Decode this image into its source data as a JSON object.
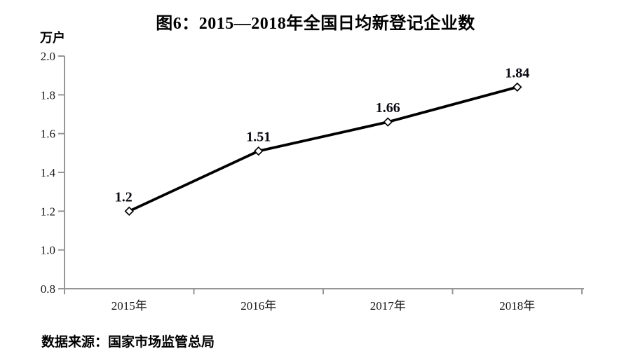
{
  "chart_data": {
    "type": "line",
    "title": "图6：2015—2018年全国日均新登记企业数",
    "unit_label": "万户",
    "categories": [
      "2015年",
      "2016年",
      "2017年",
      "2018年"
    ],
    "values": [
      1.2,
      1.51,
      1.66,
      1.84
    ],
    "point_labels": [
      "1.2",
      "1.51",
      "1.66",
      "1.84"
    ],
    "ylim": [
      0.8,
      2.0
    ],
    "ytick_labels": [
      "0.8",
      "1.0",
      "1.2",
      "1.4",
      "1.6",
      "1.8",
      "2.0"
    ],
    "grid": false,
    "legend": "none",
    "line_color": "#000000",
    "marker": "diamond-hollow",
    "marker_fill": "#ffffff",
    "axis_color": "#969696"
  },
  "source": {
    "text": "数据来源：国家市场监管总局"
  }
}
